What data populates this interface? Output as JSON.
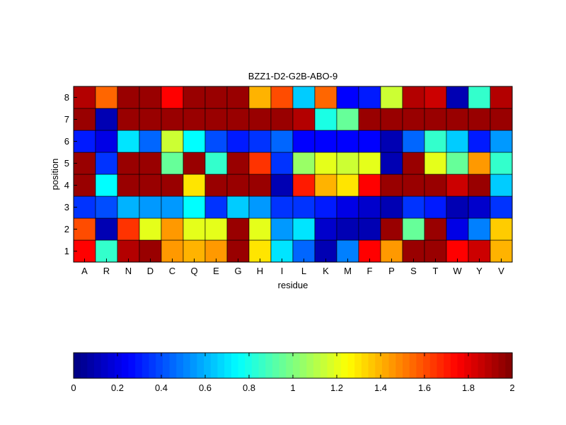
{
  "chart_data": [
    {
      "type": "heatmap",
      "title": "BZZ1-D2-G2B-ABO-9",
      "xlabel": "residue",
      "ylabel": "position",
      "x": [
        "A",
        "R",
        "N",
        "D",
        "C",
        "Q",
        "E",
        "G",
        "H",
        "I",
        "L",
        "K",
        "M",
        "F",
        "P",
        "S",
        "T",
        "W",
        "Y",
        "V"
      ],
      "y": [
        "1",
        "2",
        "3",
        "4",
        "5",
        "6",
        "7",
        "8"
      ],
      "colormap": "jet",
      "clim": [
        0,
        2
      ],
      "values": [
        [
          1.75,
          0.85,
          1.9,
          1.95,
          1.45,
          1.4,
          1.45,
          1.95,
          1.3,
          0.7,
          0.45,
          0.1,
          0.5,
          1.75,
          1.45,
          1.95,
          1.95,
          1.75,
          1.85,
          1.4
        ],
        [
          1.6,
          0.1,
          1.65,
          1.2,
          1.45,
          1.2,
          1.2,
          1.95,
          1.2,
          0.55,
          0.7,
          0.15,
          0.1,
          0.1,
          1.95,
          0.95,
          1.95,
          0.2,
          0.5,
          1.35
        ],
        [
          0.35,
          0.4,
          0.6,
          0.55,
          0.55,
          0.75,
          0.35,
          0.65,
          0.55,
          0.35,
          0.35,
          0.3,
          0.2,
          0.15,
          0.1,
          0.35,
          0.3,
          0.1,
          0.15,
          0.35
        ],
        [
          1.95,
          0.75,
          1.95,
          1.95,
          1.95,
          1.3,
          1.95,
          1.95,
          1.95,
          0.1,
          1.7,
          1.4,
          1.3,
          1.75,
          1.95,
          1.95,
          1.95,
          1.85,
          1.95,
          0.65
        ],
        [
          1.95,
          0.35,
          1.95,
          1.95,
          0.95,
          1.95,
          0.85,
          1.95,
          1.65,
          0.35,
          1.05,
          1.2,
          1.15,
          1.2,
          0.1,
          1.95,
          1.2,
          0.95,
          1.45,
          0.85
        ],
        [
          0.3,
          0.2,
          0.7,
          0.45,
          1.15,
          0.75,
          0.4,
          0.3,
          0.35,
          0.45,
          0.25,
          0.25,
          0.25,
          0.25,
          0.1,
          0.45,
          0.85,
          0.65,
          0.3,
          0.55
        ],
        [
          1.95,
          0.1,
          1.95,
          1.95,
          1.95,
          1.95,
          1.95,
          1.95,
          1.95,
          1.95,
          1.9,
          0.8,
          0.95,
          1.95,
          1.95,
          1.95,
          1.95,
          1.95,
          1.95,
          1.95
        ],
        [
          1.9,
          1.55,
          1.95,
          1.95,
          1.75,
          1.95,
          1.95,
          1.95,
          1.4,
          1.6,
          0.65,
          1.55,
          0.25,
          0.3,
          1.15,
          1.9,
          1.85,
          0.1,
          0.85,
          1.9
        ]
      ]
    },
    {
      "type": "colorbar",
      "range": [
        0,
        2
      ],
      "tick_values": [
        0,
        0.2,
        0.4,
        0.6,
        0.8,
        1,
        1.2,
        1.4,
        1.6,
        1.8,
        2
      ],
      "tick_labels": [
        "0",
        "0.2",
        "0.4",
        "0.6",
        "0.8",
        "1",
        "1.2",
        "1.4",
        "1.6",
        "1.8",
        "2"
      ]
    }
  ]
}
